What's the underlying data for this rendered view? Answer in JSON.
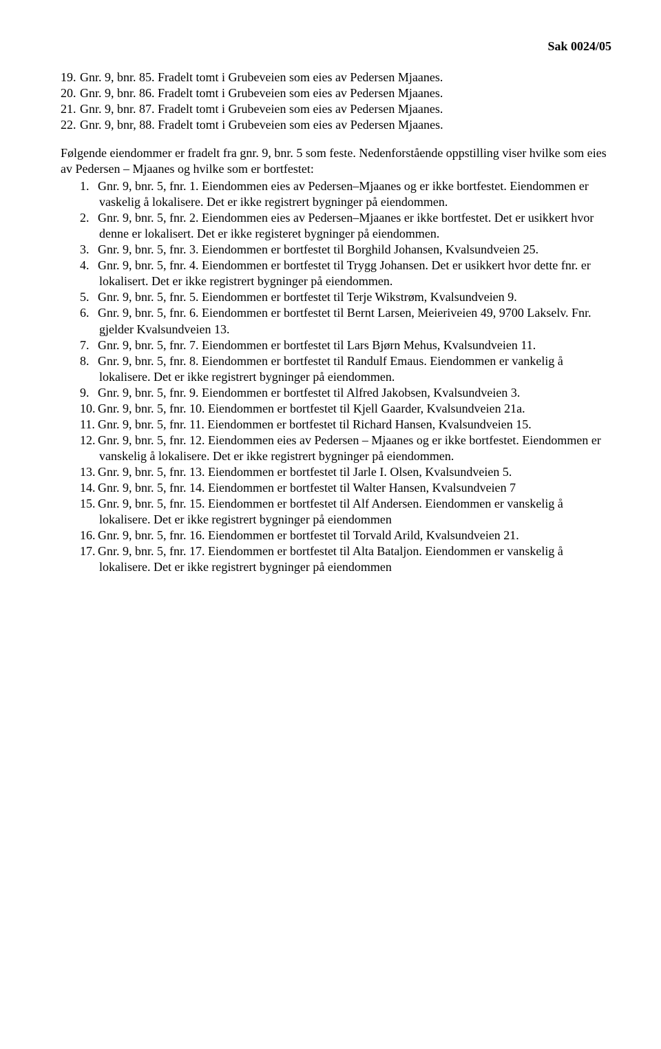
{
  "header": {
    "case_number": "Sak 0024/05"
  },
  "first_list": [
    {
      "n": "19.",
      "t": "Gnr. 9, bnr. 85. Fradelt tomt i Grubeveien som eies av Pedersen Mjaanes."
    },
    {
      "n": "20.",
      "t": "Gnr. 9, bnr. 86. Fradelt tomt i Grubeveien som eies av Pedersen Mjaanes."
    },
    {
      "n": "21.",
      "t": "Gnr. 9, bnr. 87. Fradelt tomt i Grubeveien som eies av Pedersen Mjaanes."
    },
    {
      "n": "22.",
      "t": "Gnr. 9, bnr, 88. Fradelt tomt i Grubeveien som eies av Pedersen Mjaanes."
    }
  ],
  "intro": "Følgende eiendommer er fradelt fra gnr. 9, bnr. 5 som feste. Nedenforstående oppstilling viser hvilke som eies av Pedersen – Mjaanes og hvilke som er bortfestet:",
  "second_list": [
    {
      "n": "1.",
      "t": "Gnr. 9, bnr. 5, fnr. 1.  Eiendommen eies av Pedersen–Mjaanes og er ikke bortfestet. Eiendommen er vaskelig å lokalisere. Det er ikke registrert bygninger på eiendommen."
    },
    {
      "n": "2.",
      "t": "Gnr. 9, bnr. 5, fnr. 2.  Eiendommen eies av Pedersen–Mjaanes er ikke bortfestet. Det er usikkert hvor denne er lokalisert. Det er ikke registeret bygninger på eiendommen."
    },
    {
      "n": "3.",
      "t": "Gnr. 9, bnr. 5, fnr. 3.  Eiendommen er bortfestet til Borghild Johansen, Kvalsundveien 25."
    },
    {
      "n": "4.",
      "t": "Gnr. 9, bnr. 5, fnr. 4.  Eiendommen er bortfestet til Trygg Johansen. Det er usikkert hvor dette fnr. er lokalisert. Det er ikke registrert bygninger på eiendommen."
    },
    {
      "n": "5.",
      "t": "Gnr. 9, bnr. 5, fnr. 5.  Eiendommen er bortfestet til Terje Wikstrøm, Kvalsundveien 9."
    },
    {
      "n": "6.",
      "t": "Gnr. 9, bnr. 5, fnr. 6.  Eiendommen er bortfestet til Bernt Larsen, Meieriveien 49, 9700 Lakselv. Fnr. gjelder Kvalsundveien 13."
    },
    {
      "n": "7.",
      "t": "Gnr. 9, bnr. 5, fnr. 7.  Eiendommen er bortfestet til Lars Bjørn Mehus, Kvalsundveien 11."
    },
    {
      "n": "8.",
      "t": "Gnr. 9, bnr. 5, fnr. 8.  Eiendommen er bortfestet til Randulf Emaus. Eiendommen er vankelig å lokalisere. Det er ikke registrert bygninger på eiendommen."
    },
    {
      "n": "9.",
      "t": "Gnr. 9, bnr. 5, fnr. 9.  Eiendommen er bortfestet til Alfred Jakobsen, Kvalsundveien 3."
    },
    {
      "n": "10.",
      "t": "Gnr. 9, bnr. 5, fnr. 10. Eiendommen er bortfestet til Kjell Gaarder, Kvalsundveien  21a."
    },
    {
      "n": "11.",
      "t": "Gnr. 9, bnr. 5, fnr. 11. Eiendommen er bortfestet til Richard  Hansen, Kvalsundveien 15."
    },
    {
      "n": "12.",
      "t": "Gnr. 9, bnr. 5, fnr. 12. Eiendommen eies av Pedersen – Mjaanes og er ikke bortfestet. Eiendommen er vanskelig å lokalisere. Det er ikke registrert bygninger på eiendommen."
    },
    {
      "n": "13.",
      "t": "Gnr. 9, bnr. 5, fnr. 13. Eiendommen er bortfestet til Jarle I. Olsen, Kvalsundveien 5."
    },
    {
      "n": "14.",
      "t": "Gnr. 9, bnr. 5, fnr. 14. Eiendommen er bortfestet til Walter Hansen, Kvalsundveien 7"
    },
    {
      "n": "15.",
      "t": "Gnr. 9, bnr. 5, fnr. 15. Eiendommen er bortfestet til Alf Andersen. Eiendommen er vanskelig å lokalisere. Det er ikke registrert bygninger på eiendommen"
    },
    {
      "n": "16.",
      "t": "Gnr. 9, bnr. 5, fnr. 16. Eiendommen er bortfestet til Torvald Arild, Kvalsundveien 21."
    },
    {
      "n": "17.",
      "t": "Gnr. 9, bnr. 5, fnr. 17. Eiendommen er bortfestet til Alta Bataljon. Eiendommen er vanskelig å lokalisere. Det er ikke registrert bygninger på eiendommen"
    }
  ],
  "style": {
    "font_family": "Times New Roman",
    "font_size_pt": 14,
    "text_color": "#000000",
    "background_color": "#ffffff",
    "header_bold": true
  }
}
